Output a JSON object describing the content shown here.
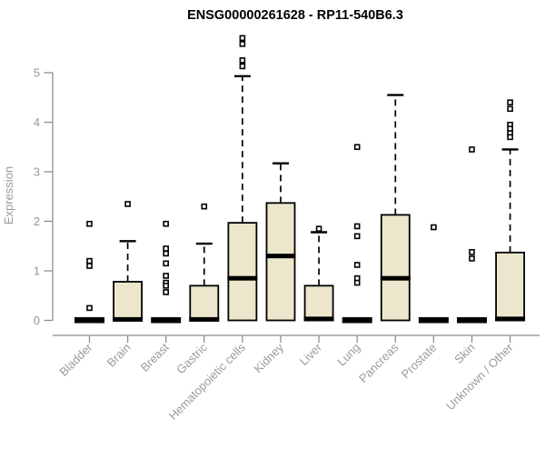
{
  "title": "ENSG00000261628 - RP11-540B6.3",
  "chart_data": {
    "type": "box",
    "title": "ENSG00000261628 - RP11-540B6.3",
    "xlabel": "",
    "ylabel": "Expression",
    "ylim": [
      0,
      5.75
    ],
    "yticks": [
      0,
      1,
      2,
      3,
      4,
      5
    ],
    "grid": false,
    "legend": null,
    "categories": [
      "Bladder",
      "Brain",
      "Breast",
      "Gastric",
      "Hematopoietic cells",
      "Kidney",
      "Liver",
      "Lung",
      "Pancreas",
      "Prostate",
      "Skin",
      "Unknown / Other"
    ],
    "series": [
      {
        "name": "Bladder",
        "flat": true,
        "q1": 0,
        "median": 0,
        "q3": 0,
        "whisker_low": 0,
        "whisker_high": 0,
        "outliers": [
          1.95,
          1.2,
          1.1,
          0.25
        ]
      },
      {
        "name": "Brain",
        "flat": false,
        "q1": 0,
        "median": 0.02,
        "q3": 0.78,
        "whisker_low": 0,
        "whisker_high": 1.6,
        "outliers": [
          2.35
        ]
      },
      {
        "name": "Breast",
        "flat": true,
        "q1": 0,
        "median": 0,
        "q3": 0,
        "whisker_low": 0,
        "whisker_high": 0,
        "outliers": [
          1.95,
          1.45,
          1.35,
          1.15,
          0.9,
          0.76,
          0.7,
          0.57
        ]
      },
      {
        "name": "Gastric",
        "flat": false,
        "q1": 0,
        "median": 0.02,
        "q3": 0.7,
        "whisker_low": 0,
        "whisker_high": 1.55,
        "outliers": [
          2.3
        ]
      },
      {
        "name": "Hematopoietic cells",
        "flat": false,
        "q1": 0,
        "median": 0.85,
        "q3": 1.97,
        "whisker_low": 0,
        "whisker_high": 4.93,
        "outliers": [
          5.7,
          5.58,
          5.25,
          5.13
        ]
      },
      {
        "name": "Kidney",
        "flat": false,
        "q1": 0,
        "median": 1.3,
        "q3": 2.37,
        "whisker_low": 0,
        "whisker_high": 3.17,
        "outliers": []
      },
      {
        "name": "Liver",
        "flat": false,
        "q1": 0,
        "median": 0.03,
        "q3": 0.7,
        "whisker_low": 0,
        "whisker_high": 1.78,
        "outliers": [
          1.85
        ]
      },
      {
        "name": "Lung",
        "flat": true,
        "q1": 0,
        "median": 0,
        "q3": 0,
        "whisker_low": 0,
        "whisker_high": 0,
        "outliers": [
          3.5,
          1.9,
          1.7,
          1.12,
          0.85,
          0.76
        ]
      },
      {
        "name": "Pancreas",
        "flat": false,
        "q1": 0,
        "median": 0.85,
        "q3": 2.13,
        "whisker_low": 0,
        "whisker_high": 4.55,
        "outliers": []
      },
      {
        "name": "Prostate",
        "flat": true,
        "q1": 0,
        "median": 0,
        "q3": 0,
        "whisker_low": 0,
        "whisker_high": 0,
        "outliers": [
          1.88
        ]
      },
      {
        "name": "Skin",
        "flat": true,
        "q1": 0,
        "median": 0,
        "q3": 0,
        "whisker_low": 0,
        "whisker_high": 0,
        "outliers": [
          3.45,
          1.38,
          1.25
        ]
      },
      {
        "name": "Unknown / Other",
        "flat": false,
        "q1": 0,
        "median": 0.03,
        "q3": 1.37,
        "whisker_low": 0,
        "whisker_high": 3.45,
        "outliers": [
          4.4,
          4.27,
          3.95,
          3.87,
          3.78,
          3.7
        ]
      }
    ],
    "colors": {
      "box_fill": "#ece7cc",
      "box_stroke": "#000000",
      "median": "#000000",
      "outlier_stroke": "#000000",
      "axis_line": "#8e8e8e",
      "y_tick_label": "#9099a4",
      "x_category_label": "#9b9b9b",
      "title": "#000000",
      "background": "#ffffff"
    }
  }
}
